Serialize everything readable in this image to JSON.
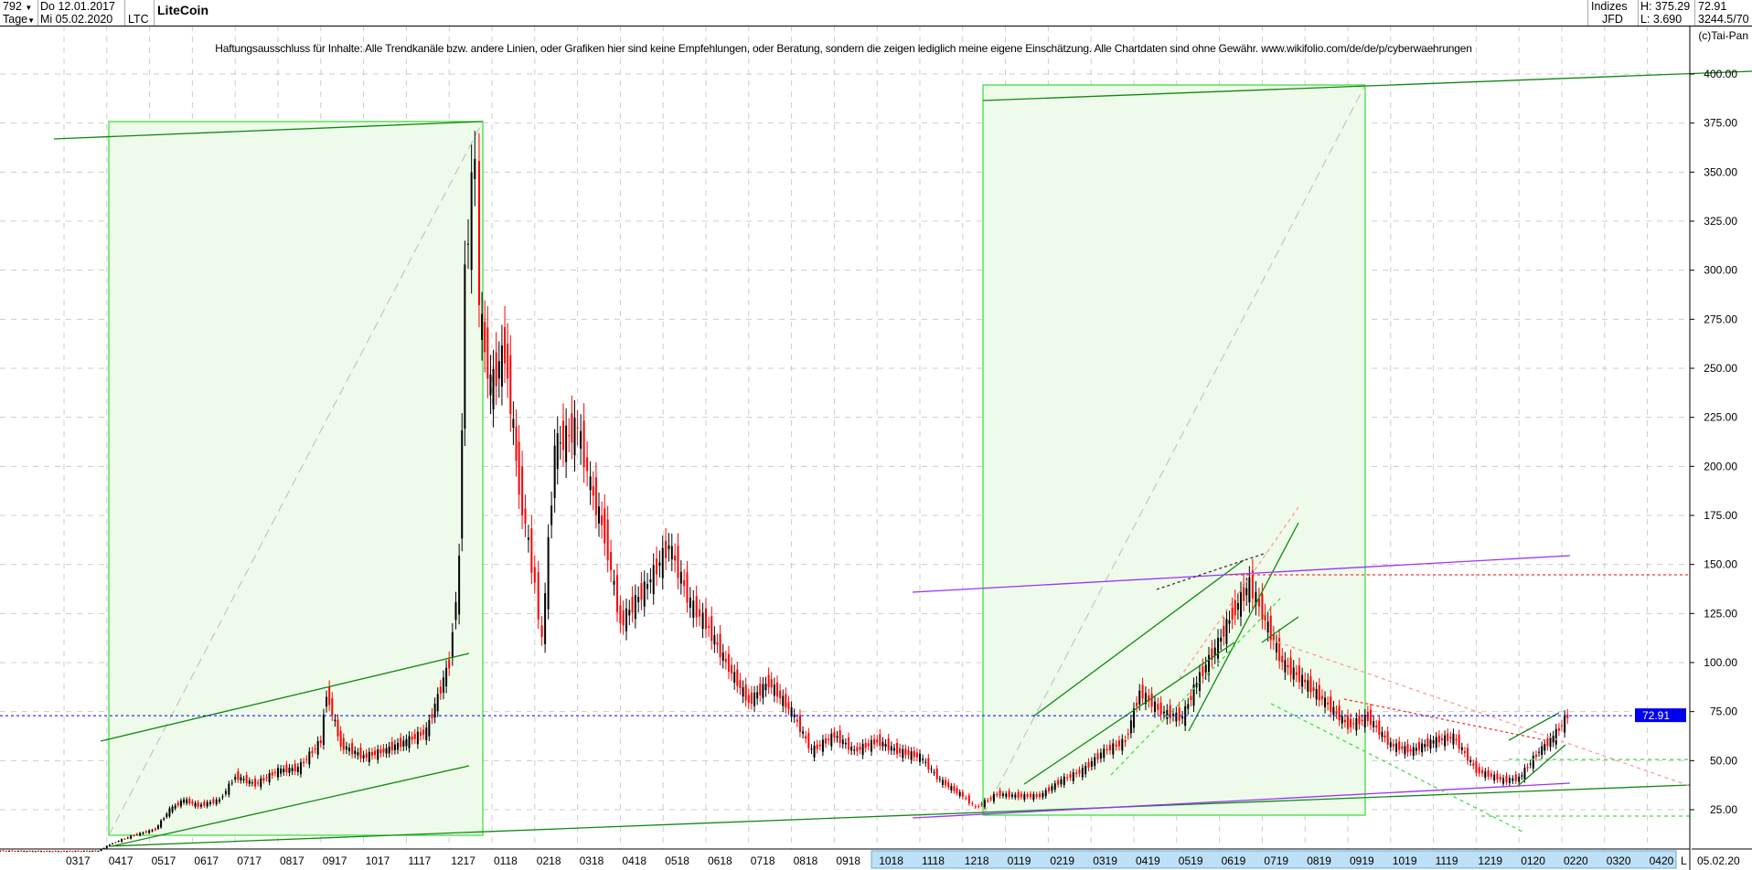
{
  "header": {
    "count": "792",
    "period": "Tage",
    "date_from": "Do 12.01.2017",
    "date_to": "Mi 05.02.2020",
    "symbol": "LTC",
    "name": "LiteCoin",
    "category": "Indizes",
    "source": "JFD",
    "high": "H: 375.29",
    "low": "L: 3.690",
    "last": "72.91",
    "extra": "3244.5/70"
  },
  "copyright": "(c)Tai-Pan",
  "disclaimer": "Haftungsausschluss für Inhalte: Alle Trendkanäle bzw. andere Linien, oder Grafiken hier sind keine Empfehlungen, oder Beratung, sondern die zeigen lediglich meine eigene Einschätzung. Alle Chartdaten sind ohne Gewähr.  www.wikifolio.com/de/de/p/cyberwaehrungen",
  "axis_footer": {
    "mode": "L",
    "date": "05.02.20"
  },
  "colors": {
    "up": "#000000",
    "down": "#ff0000",
    "box_fill": "#eefbea",
    "box_stroke": "#33dd33",
    "trend": "#118811",
    "purple": "#9933ff",
    "last_price": "#0000ff"
  },
  "chart_data": {
    "type": "candlestick",
    "title": "LiteCoin",
    "ylim": [
      0,
      410
    ],
    "y_ticks": [
      "25.00",
      "50.00",
      "75.00",
      "100.00",
      "125.00",
      "150.00",
      "175.00",
      "200.00",
      "225.00",
      "250.00",
      "275.00",
      "300.00",
      "325.00",
      "350.00",
      "375.00",
      "400.00"
    ],
    "x_ticks": [
      "03 17",
      "04 17",
      "05 17",
      "06 17",
      "07 17",
      "08 17",
      "09 17",
      "10 17",
      "11 17",
      "12 17",
      "01 18",
      "02 18",
      "03 18",
      "04 18",
      "05 18",
      "06 18",
      "07 18",
      "08 18",
      "09 18",
      "10 18",
      "11 18",
      "12 18",
      "01 19",
      "02 19",
      "03 19",
      "04 19",
      "05 19",
      "06 19",
      "07 19",
      "08 19",
      "09 19",
      "10 19",
      "11 19",
      "12 19",
      "01 20",
      "02 20",
      "03 20",
      "04 20"
    ],
    "grid": true,
    "last_price": 72.91,
    "last_price_label": "72.91",
    "points": [
      [
        "2017-01-12",
        4.1
      ],
      [
        "2017-02-01",
        3.9
      ],
      [
        "2017-03-01",
        3.8
      ],
      [
        "2017-03-25",
        4.0
      ],
      [
        "2017-04-05",
        8
      ],
      [
        "2017-04-20",
        12
      ],
      [
        "2017-05-05",
        15
      ],
      [
        "2017-05-15",
        25
      ],
      [
        "2017-05-25",
        30
      ],
      [
        "2017-06-05",
        27
      ],
      [
        "2017-06-20",
        30
      ],
      [
        "2017-07-01",
        42
      ],
      [
        "2017-07-15",
        38
      ],
      [
        "2017-08-01",
        45
      ],
      [
        "2017-08-15",
        46
      ],
      [
        "2017-09-01",
        60
      ],
      [
        "2017-09-05",
        85
      ],
      [
        "2017-09-15",
        58
      ],
      [
        "2017-10-01",
        52
      ],
      [
        "2017-10-15",
        55
      ],
      [
        "2017-11-01",
        60
      ],
      [
        "2017-11-15",
        65
      ],
      [
        "2017-12-01",
        100
      ],
      [
        "2017-12-08",
        150
      ],
      [
        "2017-12-12",
        300
      ],
      [
        "2017-12-19",
        360
      ],
      [
        "2017-12-22",
        280
      ],
      [
        "2017-12-30",
        240
      ],
      [
        "2018-01-10",
        260
      ],
      [
        "2018-01-20",
        190
      ],
      [
        "2018-02-01",
        140
      ],
      [
        "2018-02-06",
        110
      ],
      [
        "2018-02-15",
        210
      ],
      [
        "2018-03-01",
        220
      ],
      [
        "2018-03-10",
        190
      ],
      [
        "2018-03-20",
        165
      ],
      [
        "2018-04-01",
        120
      ],
      [
        "2018-04-20",
        140
      ],
      [
        "2018-05-05",
        160
      ],
      [
        "2018-05-20",
        130
      ],
      [
        "2018-06-01",
        120
      ],
      [
        "2018-06-15",
        100
      ],
      [
        "2018-07-01",
        80
      ],
      [
        "2018-07-15",
        90
      ],
      [
        "2018-08-01",
        75
      ],
      [
        "2018-08-15",
        55
      ],
      [
        "2018-09-01",
        63
      ],
      [
        "2018-09-15",
        55
      ],
      [
        "2018-10-01",
        60
      ],
      [
        "2018-10-15",
        55
      ],
      [
        "2018-11-01",
        52
      ],
      [
        "2018-11-15",
        40
      ],
      [
        "2018-12-01",
        32
      ],
      [
        "2018-12-10",
        26
      ],
      [
        "2018-12-25",
        33
      ],
      [
        "2019-01-10",
        32
      ],
      [
        "2019-01-25",
        32
      ],
      [
        "2019-02-10",
        40
      ],
      [
        "2019-02-25",
        45
      ],
      [
        "2019-03-10",
        55
      ],
      [
        "2019-03-25",
        60
      ],
      [
        "2019-04-05",
        85
      ],
      [
        "2019-04-20",
        75
      ],
      [
        "2019-05-05",
        72
      ],
      [
        "2019-05-15",
        90
      ],
      [
        "2019-05-30",
        110
      ],
      [
        "2019-06-10",
        125
      ],
      [
        "2019-06-22",
        140
      ],
      [
        "2019-07-01",
        125
      ],
      [
        "2019-07-15",
        100
      ],
      [
        "2019-08-01",
        90
      ],
      [
        "2019-08-15",
        80
      ],
      [
        "2019-09-01",
        68
      ],
      [
        "2019-09-15",
        72
      ],
      [
        "2019-10-01",
        58
      ],
      [
        "2019-10-15",
        55
      ],
      [
        "2019-11-01",
        60
      ],
      [
        "2019-11-15",
        62
      ],
      [
        "2019-12-01",
        45
      ],
      [
        "2019-12-20",
        40
      ],
      [
        "2020-01-01",
        41
      ],
      [
        "2020-01-15",
        55
      ],
      [
        "2020-01-25",
        62
      ],
      [
        "2020-02-05",
        72.91
      ]
    ]
  }
}
